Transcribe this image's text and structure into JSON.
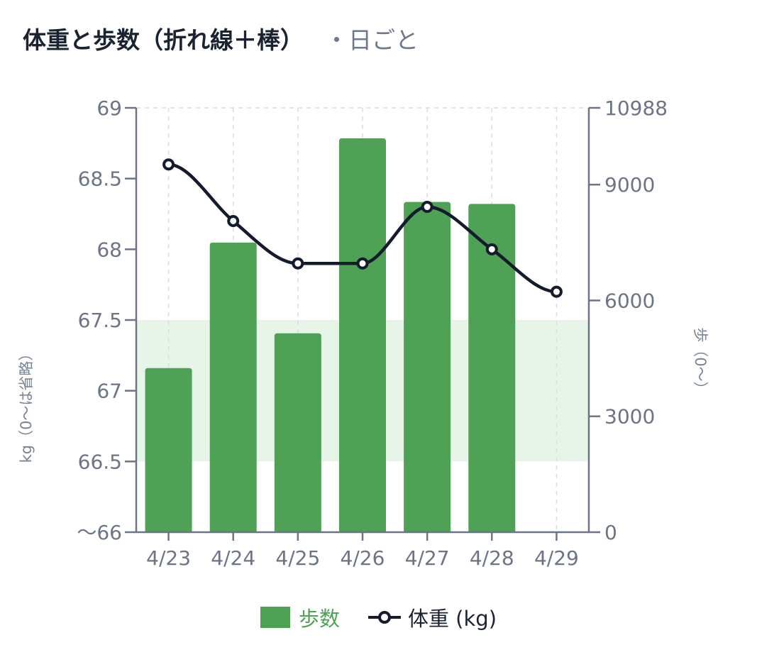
{
  "header": {
    "title": "体重と歩数（折れ線＋棒）",
    "subtitle": "・日ごと"
  },
  "colors": {
    "bar": "#4ea155",
    "line": "#141b2d",
    "band": "#e6f5e8",
    "axis": "#6b7585"
  },
  "chart_data": {
    "type": "bar",
    "categories": [
      "4/23",
      "4/24",
      "4/25",
      "4/26",
      "4/27",
      "4/28",
      "4/29"
    ],
    "series": [
      {
        "name": "歩数",
        "type": "bar",
        "axis": "right",
        "values": [
          4250,
          7500,
          5150,
          10200,
          8550,
          8500,
          null
        ]
      },
      {
        "name": "体重 (kg)",
        "type": "line",
        "axis": "left",
        "values": [
          68.6,
          68.2,
          67.9,
          67.9,
          68.3,
          68.0,
          67.7
        ]
      }
    ],
    "y_left": {
      "label": "kg（0〜は省略）",
      "range": [
        66,
        69
      ],
      "ticks": [
        {
          "value": 69,
          "label": "69"
        },
        {
          "value": 68.5,
          "label": "68.5"
        },
        {
          "value": 68,
          "label": "68"
        },
        {
          "value": 67.5,
          "label": "67.5"
        },
        {
          "value": 67,
          "label": "67"
        },
        {
          "value": 66.5,
          "label": "66.5"
        },
        {
          "value": 66,
          "label": "〜66"
        }
      ]
    },
    "y_right": {
      "label": "歩（0〜）",
      "range": [
        0,
        10988
      ],
      "ticks": [
        {
          "value": 10988,
          "label": "10988"
        },
        {
          "value": 9000,
          "label": "9000"
        },
        {
          "value": 6000,
          "label": "6000"
        },
        {
          "value": 3000,
          "label": "3000"
        },
        {
          "value": 0,
          "label": "0"
        }
      ]
    },
    "band": {
      "axis": "left",
      "from": 66.5,
      "to": 67.5
    },
    "grid": true,
    "legend": "bottom"
  },
  "legend": {
    "steps_label": "歩数",
    "weight_label": "体重 (kg)"
  }
}
